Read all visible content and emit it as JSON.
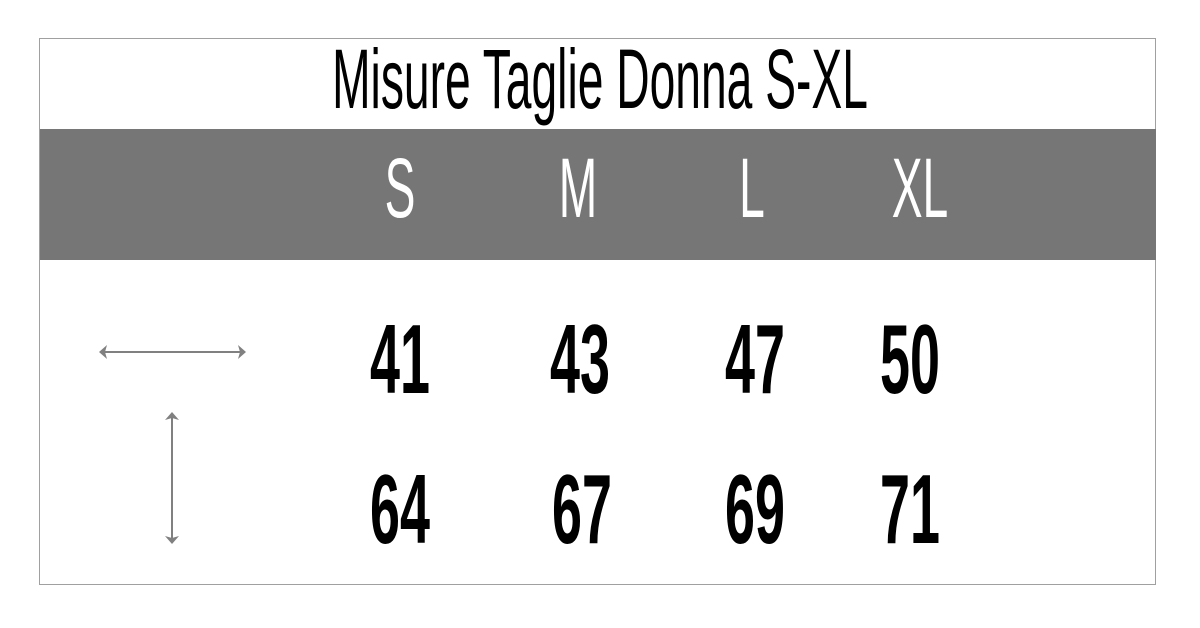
{
  "title": "Misure Taglie Donna S-XL",
  "sizes": [
    "S",
    "M",
    "L",
    "XL"
  ],
  "rows": [
    {
      "icon": "horizontal-double-arrow-icon",
      "values": [
        "41",
        "43",
        "47",
        "50"
      ]
    },
    {
      "icon": "vertical-double-arrow-icon",
      "values": [
        "64",
        "67",
        "69",
        "71"
      ]
    }
  ],
  "colors": {
    "header_band": "#767676",
    "header_text": "#ffffff",
    "arrow": "#808080",
    "border": "#a0a0a0"
  }
}
